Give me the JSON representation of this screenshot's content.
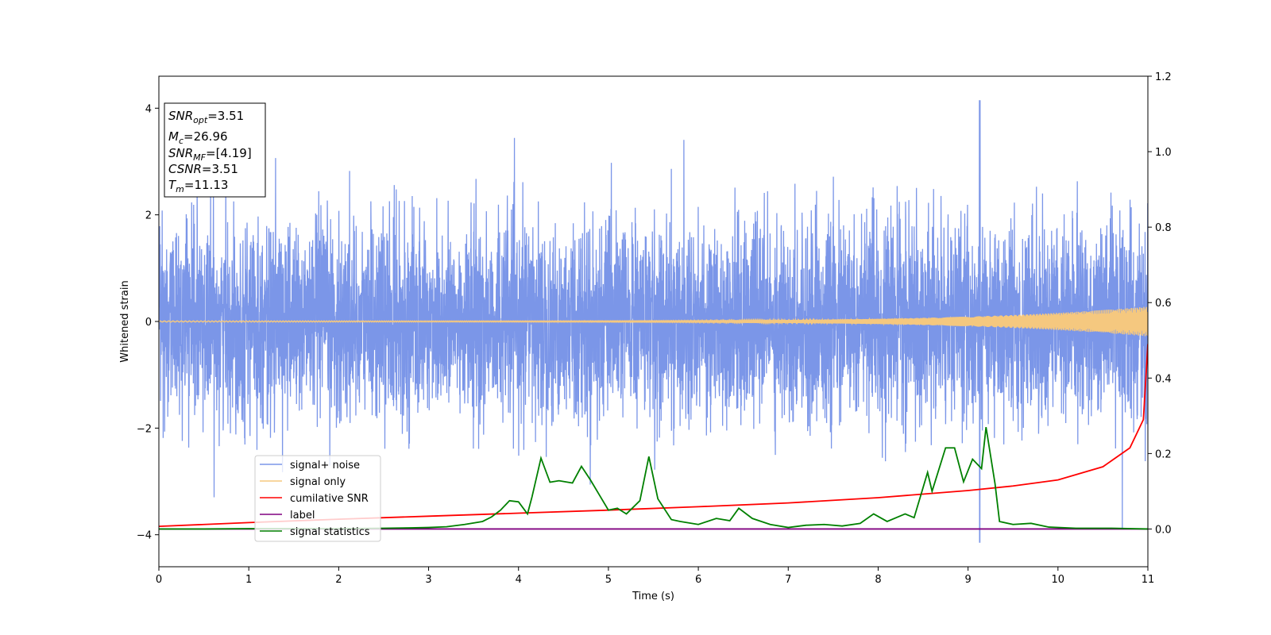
{
  "chart_data": {
    "type": "line",
    "xlabel": "Time (s)",
    "ylabel": "Whitened strain",
    "xlim": [
      0,
      11
    ],
    "ylim": [
      -4.6,
      4.6
    ],
    "y2lim": [
      -0.1,
      1.2
    ],
    "x_ticks": [
      "0",
      "1",
      "2",
      "3",
      "4",
      "5",
      "6",
      "7",
      "8",
      "9",
      "10",
      "11"
    ],
    "y_ticks": [
      "−4",
      "−2",
      "0",
      "2",
      "4"
    ],
    "y2_ticks": [
      "0.0",
      "0.2",
      "0.4",
      "0.6",
      "0.8",
      "1.0",
      "1.2"
    ],
    "grid": false,
    "legend_position": "lower-left",
    "info_box": {
      "snr_opt": {
        "sym": "SNR",
        "sub": "opt",
        "value": "=3.51"
      },
      "mc": {
        "sym": "M",
        "sub": "c",
        "value": "=26.96"
      },
      "snr_mf": {
        "sym": "SNR",
        "sub": "MF",
        "value": "=[4.19]"
      },
      "csnr": {
        "sym": "CSNR",
        "sub": "",
        "value": "=3.51"
      },
      "tm": {
        "sym": "T",
        "sub": "m",
        "value": "=11.13"
      }
    },
    "series": [
      {
        "name": "signal+ noise",
        "axis": "left",
        "color": "#7b96e8",
        "noise_std": 0.9,
        "peak_min": -4.15,
        "peak_max": 4.15,
        "peak_time": 9.13
      },
      {
        "name": "signal only",
        "axis": "left",
        "color": "#f5c87f",
        "amplitude_start": 0.01,
        "amplitude_end": 0.28
      },
      {
        "name": "cumilative SNR",
        "axis": "right",
        "color": "#ff0000",
        "points": [
          [
            0,
            0.007
          ],
          [
            1,
            0.017
          ],
          [
            2,
            0.026
          ],
          [
            3,
            0.034
          ],
          [
            4,
            0.042
          ],
          [
            5,
            0.05
          ],
          [
            6,
            0.059
          ],
          [
            7,
            0.069
          ],
          [
            8,
            0.083
          ],
          [
            9,
            0.102
          ],
          [
            9.5,
            0.114
          ],
          [
            10,
            0.13
          ],
          [
            10.5,
            0.165
          ],
          [
            10.8,
            0.215
          ],
          [
            10.95,
            0.29
          ],
          [
            11,
            0.49
          ]
        ]
      },
      {
        "name": "label",
        "axis": "right",
        "color": "#800080",
        "points": [
          [
            0,
            0.0
          ],
          [
            11,
            0.0
          ]
        ]
      },
      {
        "name": "signal statistics",
        "axis": "right",
        "color": "#008000",
        "points": [
          [
            0,
            0.0
          ],
          [
            0.5,
            0.0
          ],
          [
            1,
            0.001
          ],
          [
            1.5,
            0.001
          ],
          [
            2,
            0.001
          ],
          [
            2.5,
            0.002
          ],
          [
            2.8,
            0.003
          ],
          [
            3,
            0.004
          ],
          [
            3.2,
            0.006
          ],
          [
            3.4,
            0.012
          ],
          [
            3.6,
            0.02
          ],
          [
            3.7,
            0.032
          ],
          [
            3.8,
            0.05
          ],
          [
            3.9,
            0.075
          ],
          [
            4.0,
            0.072
          ],
          [
            4.1,
            0.04
          ],
          [
            4.15,
            0.085
          ],
          [
            4.25,
            0.188
          ],
          [
            4.35,
            0.124
          ],
          [
            4.45,
            0.128
          ],
          [
            4.6,
            0.122
          ],
          [
            4.7,
            0.166
          ],
          [
            4.8,
            0.13
          ],
          [
            4.9,
            0.09
          ],
          [
            5.0,
            0.05
          ],
          [
            5.1,
            0.055
          ],
          [
            5.2,
            0.04
          ],
          [
            5.35,
            0.075
          ],
          [
            5.45,
            0.192
          ],
          [
            5.55,
            0.08
          ],
          [
            5.7,
            0.025
          ],
          [
            5.8,
            0.02
          ],
          [
            6.0,
            0.012
          ],
          [
            6.2,
            0.028
          ],
          [
            6.35,
            0.022
          ],
          [
            6.45,
            0.055
          ],
          [
            6.6,
            0.028
          ],
          [
            6.8,
            0.012
          ],
          [
            7.0,
            0.004
          ],
          [
            7.2,
            0.01
          ],
          [
            7.4,
            0.012
          ],
          [
            7.6,
            0.008
          ],
          [
            7.8,
            0.015
          ],
          [
            7.95,
            0.04
          ],
          [
            8.1,
            0.02
          ],
          [
            8.3,
            0.04
          ],
          [
            8.4,
            0.03
          ],
          [
            8.55,
            0.15
          ],
          [
            8.6,
            0.1
          ],
          [
            8.75,
            0.215
          ],
          [
            8.85,
            0.215
          ],
          [
            8.95,
            0.125
          ],
          [
            9.05,
            0.185
          ],
          [
            9.15,
            0.16
          ],
          [
            9.2,
            0.27
          ],
          [
            9.3,
            0.12
          ],
          [
            9.35,
            0.02
          ],
          [
            9.5,
            0.012
          ],
          [
            9.7,
            0.015
          ],
          [
            9.9,
            0.005
          ],
          [
            10.2,
            0.002
          ],
          [
            10.6,
            0.002
          ],
          [
            11,
            0.0
          ]
        ]
      }
    ]
  }
}
